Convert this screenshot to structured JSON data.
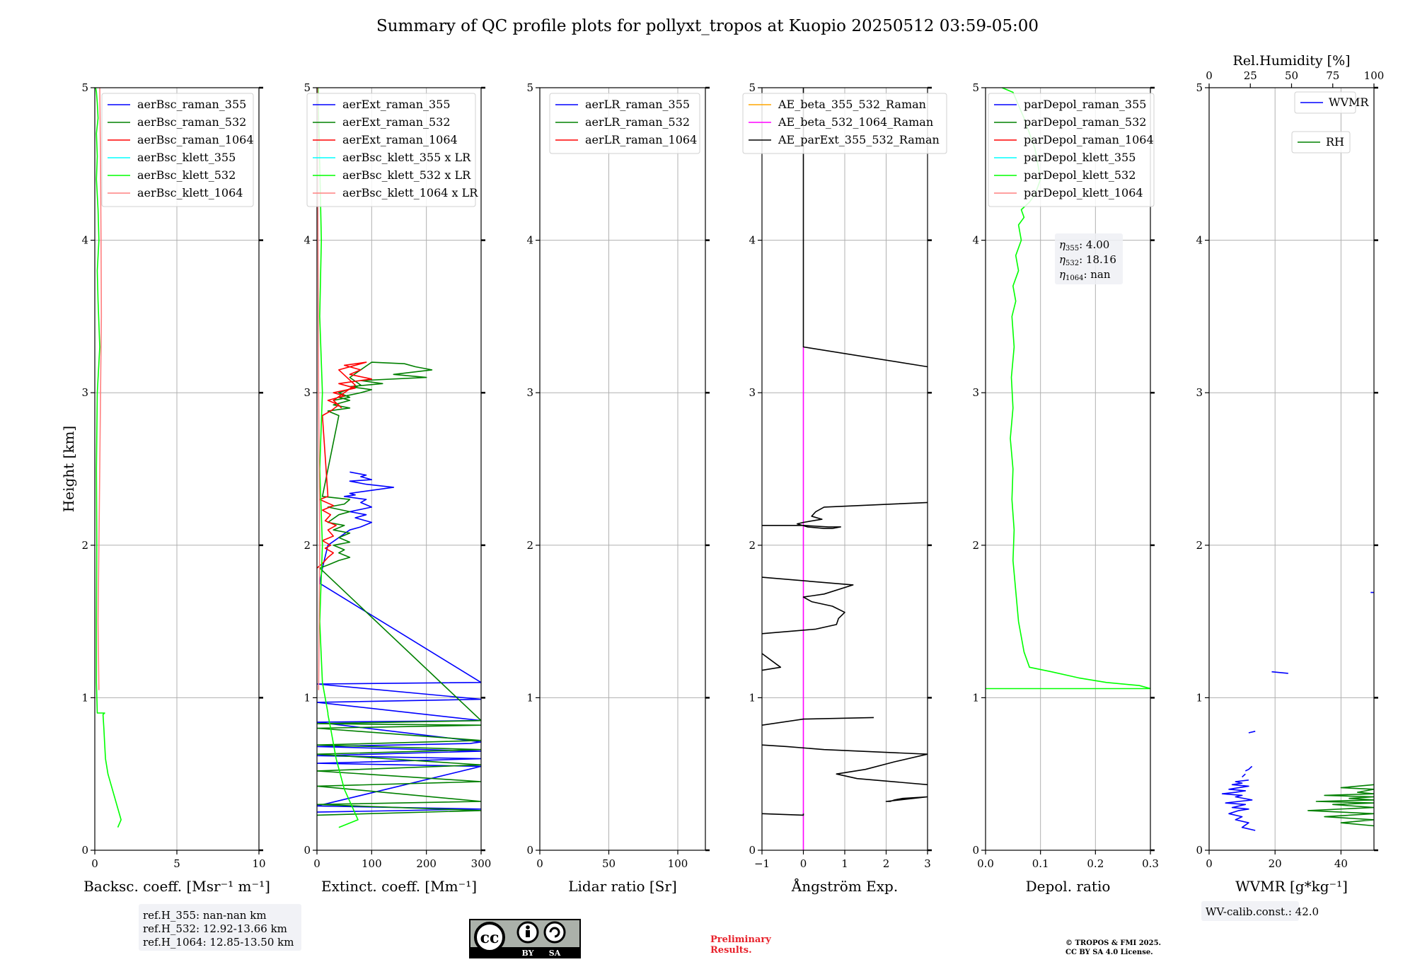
{
  "title": "Summary of QC profile plots for pollyxt_tropos at Kuopio 20250512 03:59-05:00",
  "chart_data": [
    {
      "type": "line",
      "panel": "backscatter",
      "xlabel": "Backsc. coeff. [Msr⁻¹ m⁻¹]",
      "ylabel": "Height [km]",
      "xlim": [
        0,
        10
      ],
      "ylim": [
        0,
        5
      ],
      "xticks": [
        "0",
        "5",
        "10"
      ],
      "yticks": [
        "0",
        "1",
        "2",
        "3",
        "4",
        "5"
      ],
      "grid": true,
      "legend_position": "top-right",
      "series": [
        {
          "name": "aerBsc_raman_355",
          "color": "#0000ff",
          "x": [],
          "y": []
        },
        {
          "name": "aerBsc_raman_532",
          "color": "#008000",
          "x": [],
          "y": []
        },
        {
          "name": "aerBsc_raman_1064",
          "color": "#ff0000",
          "x": [],
          "y": []
        },
        {
          "name": "aerBsc_klett_355",
          "color": "#00ffff",
          "x": [],
          "y": []
        },
        {
          "name": "aerBsc_klett_532",
          "color": "#00ff00",
          "x": [
            1.4,
            1.6,
            0.8,
            0.65,
            0.6,
            0.55,
            0.5,
            0.6,
            0.15,
            0.1,
            0.1,
            0.12,
            0.1,
            0.15,
            0.3,
            0.2,
            0.15,
            0.25,
            0.2,
            0.1,
            0.15,
            0.1,
            0.2,
            0.15,
            0.1,
            0.05
          ],
          "y": [
            0.15,
            0.2,
            0.5,
            0.6,
            0.7,
            0.8,
            0.89,
            0.9,
            0.9,
            1.1,
            1.5,
            2.0,
            2.5,
            3.0,
            3.3,
            3.6,
            3.8,
            4.0,
            4.2,
            4.4,
            4.55,
            4.7,
            4.8,
            4.9,
            4.97,
            5.0
          ]
        },
        {
          "name": "aerBsc_klett_1064",
          "color": "#ff8080",
          "x": [
            0.25,
            0.2,
            0.25,
            0.3,
            0.35,
            0.4,
            0.38,
            0.35,
            0.3
          ],
          "y": [
            1.05,
            1.5,
            2.0,
            2.5,
            3.0,
            3.5,
            4.0,
            4.5,
            5.0
          ]
        }
      ]
    },
    {
      "type": "line",
      "panel": "extinction",
      "xlabel": "Extinct. coeff. [Mm⁻¹]",
      "xlim": [
        0,
        300
      ],
      "ylim": [
        0,
        5
      ],
      "xticks": [
        "0",
        "100",
        "200",
        "300"
      ],
      "yticks": [
        "0",
        "1",
        "2",
        "3",
        "4",
        "5"
      ],
      "grid": true,
      "legend_position": "top-right",
      "series": [
        {
          "name": "aerExt_raman_355",
          "color": "#0000ff",
          "x": [
            0,
            300,
            0,
            300,
            0,
            300,
            0,
            300,
            0,
            280,
            300,
            0,
            300,
            0,
            300,
            0,
            300,
            5,
            10,
            20,
            40,
            60,
            80,
            100,
            70,
            90,
            60,
            100,
            80,
            90,
            50,
            70,
            60,
            100,
            140,
            90,
            60,
            100,
            80,
            90,
            60
          ],
          "y": [
            0.25,
            0.27,
            0.29,
            0.55,
            0.57,
            0.6,
            0.62,
            0.65,
            0.68,
            0.7,
            0.71,
            0.84,
            0.85,
            0.97,
            0.99,
            1.09,
            1.1,
            1.75,
            1.85,
            2.0,
            2.05,
            2.1,
            2.12,
            2.15,
            2.18,
            2.2,
            2.22,
            2.25,
            2.28,
            2.3,
            2.32,
            2.33,
            2.34,
            2.36,
            2.38,
            2.4,
            2.42,
            2.43,
            2.45,
            2.46,
            2.48
          ]
        },
        {
          "name": "aerExt_raman_532",
          "color": "#008000",
          "x": [
            0,
            300,
            0,
            300,
            0,
            300,
            0,
            300,
            0,
            300,
            0,
            300,
            0,
            300,
            0,
            300,
            5,
            20,
            40,
            60,
            40,
            50,
            30,
            60,
            40,
            60,
            30,
            50,
            20,
            40,
            60,
            20,
            50,
            60,
            10,
            40,
            20,
            60,
            30,
            60,
            40,
            80,
            100,
            60,
            120,
            80,
            200,
            140,
            210,
            180,
            160,
            100,
            60,
            80,
            40,
            60,
            30
          ],
          "y": [
            0.23,
            0.26,
            0.3,
            0.32,
            0.42,
            0.45,
            0.52,
            0.56,
            0.63,
            0.66,
            0.69,
            0.72,
            0.8,
            0.82,
            0.83,
            0.85,
            1.85,
            1.87,
            1.9,
            1.92,
            1.95,
            1.97,
            2.0,
            2.02,
            2.05,
            2.08,
            2.1,
            2.13,
            2.15,
            2.2,
            2.22,
            2.25,
            2.27,
            2.3,
            2.32,
            2.85,
            2.88,
            2.9,
            2.92,
            2.95,
            2.97,
            3.0,
            3.02,
            3.04,
            3.06,
            3.08,
            3.1,
            3.12,
            3.15,
            3.17,
            3.19,
            3.2,
            3.1,
            3.05,
            3.0,
            2.97,
            2.95
          ]
        },
        {
          "name": "aerExt_raman_1064",
          "color": "#ff0000",
          "x": [
            0,
            10,
            20,
            30,
            15,
            25,
            10,
            30,
            20,
            35,
            15,
            25,
            10,
            30,
            5,
            20,
            10,
            25,
            40,
            20,
            50,
            30,
            70,
            40,
            100,
            60,
            80,
            50,
            90,
            40,
            70,
            30,
            45
          ],
          "y": [
            1.85,
            1.88,
            1.92,
            1.95,
            1.98,
            2.0,
            2.03,
            2.06,
            2.1,
            2.13,
            2.16,
            2.2,
            2.23,
            2.26,
            2.3,
            2.32,
            2.85,
            2.88,
            2.92,
            2.95,
            2.98,
            3.0,
            3.03,
            3.06,
            3.09,
            3.12,
            3.15,
            3.18,
            3.2,
            3.15,
            3.05,
            2.95,
            2.9
          ]
        },
        {
          "name": "aerBsc_klett_355 x LR",
          "color": "#00ffff",
          "x": [],
          "y": []
        },
        {
          "name": "aerBsc_klett_532 x LR",
          "color": "#00ff00",
          "x": [
            40,
            75,
            50,
            35,
            25,
            20,
            20,
            10,
            5,
            10,
            5,
            10,
            5,
            8,
            5,
            3,
            2
          ],
          "y": [
            0.15,
            0.2,
            0.4,
            0.6,
            0.8,
            0.89,
            0.9,
            1.1,
            1.5,
            2.0,
            2.5,
            3.0,
            3.5,
            4.0,
            4.5,
            4.8,
            5.0
          ]
        },
        {
          "name": "aerBsc_klett_1064 x LR",
          "color": "#ff8080",
          "x": [
            3,
            4,
            5,
            4,
            3,
            2,
            1
          ],
          "y": [
            1.05,
            1.5,
            2.0,
            2.5,
            3.0,
            4.0,
            5.0
          ]
        }
      ]
    },
    {
      "type": "line",
      "panel": "lidar-ratio",
      "xlabel": "Lidar ratio [Sr]",
      "xlim": [
        0,
        120
      ],
      "ylim": [
        0,
        5
      ],
      "xticks": [
        "0",
        "50",
        "100"
      ],
      "yticks": [
        "0",
        "1",
        "2",
        "3",
        "4",
        "5"
      ],
      "grid": true,
      "legend_position": "top-right",
      "series": [
        {
          "name": "aerLR_raman_355",
          "color": "#0000ff",
          "x": [],
          "y": []
        },
        {
          "name": "aerLR_raman_532",
          "color": "#008000",
          "x": [],
          "y": []
        },
        {
          "name": "aerLR_raman_1064",
          "color": "#ff0000",
          "x": [],
          "y": []
        }
      ]
    },
    {
      "type": "line",
      "panel": "angstrom",
      "xlabel": "Ångström Exp.",
      "xlim": [
        -1,
        3
      ],
      "ylim": [
        0,
        5
      ],
      "xticks": [
        "−1",
        "0",
        "1",
        "2",
        "3"
      ],
      "yticks": [
        "0",
        "1",
        "2",
        "3",
        "4",
        "5"
      ],
      "grid": true,
      "legend_position": "top",
      "series": [
        {
          "name": "AE_beta_355_532_Raman",
          "color": "#ffa500",
          "x": [],
          "y": []
        },
        {
          "name": "AE_beta_532_1064_Raman",
          "color": "#ff00ff",
          "x": [
            0,
            0
          ],
          "y": [
            0.0,
            3.3
          ]
        },
        {
          "name": "AE_parExt_355_532_Raman",
          "color": "#000000",
          "x": [
            -1,
            0,
            0,
            null,
            3,
            2.0,
            2.1,
            2.2,
            2.4,
            3,
            null,
            3,
            1.3,
            0.8,
            1.5,
            2.2,
            3,
            null,
            3,
            0.5,
            -0.4,
            -1,
            null,
            1.7,
            0.0,
            -1,
            null,
            -1,
            -0.55,
            -1,
            null,
            -1,
            0.3,
            0.8,
            0.85,
            1.0,
            0.7,
            0.2,
            0,
            0.5,
            1.2,
            -1,
            null,
            3,
            0.5,
            0.3,
            0.2,
            0.45,
            0.0,
            -0.15,
            0.1,
            0.5,
            0.5,
            0.7,
            0.9,
            0.6,
            0.0,
            -1,
            null,
            3,
            0.0,
            0,
            0
          ],
          "y": [
            0.24,
            0.23,
            0.24,
            null,
            0.35,
            0.32,
            0.32,
            0.33,
            0.34,
            0.35,
            null,
            0.43,
            0.47,
            0.5,
            0.53,
            0.58,
            0.63,
            null,
            0.63,
            0.66,
            0.68,
            0.69,
            null,
            0.87,
            0.86,
            0.82,
            null,
            1.18,
            1.2,
            1.29,
            null,
            1.42,
            1.45,
            1.48,
            1.52,
            1.56,
            1.6,
            1.63,
            1.66,
            1.68,
            1.74,
            1.79,
            null,
            2.28,
            2.25,
            2.22,
            2.19,
            2.17,
            2.15,
            2.14,
            2.12,
            2.11,
            2.11,
            2.11,
            2.12,
            2.12,
            2.13,
            2.13,
            null,
            3.17,
            3.3,
            3.3,
            5.0
          ]
        }
      ]
    },
    {
      "type": "line",
      "panel": "depolarization",
      "xlabel": "Depol. ratio",
      "xlim": [
        0.0,
        0.3
      ],
      "ylim": [
        0,
        5
      ],
      "xticks": [
        "0.0",
        "0.1",
        "0.2",
        "0.3"
      ],
      "yticks": [
        "0",
        "1",
        "2",
        "3",
        "4",
        "5"
      ],
      "grid": true,
      "legend_position": "top-left",
      "series": [
        {
          "name": "parDepol_raman_355",
          "color": "#0000ff",
          "x": [],
          "y": []
        },
        {
          "name": "parDepol_raman_532",
          "color": "#008000",
          "x": [],
          "y": []
        },
        {
          "name": "parDepol_raman_1064",
          "color": "#ff0000",
          "x": [],
          "y": []
        },
        {
          "name": "parDepol_klett_355",
          "color": "#00ffff",
          "x": [],
          "y": []
        },
        {
          "name": "parDepol_klett_532",
          "color": "#00ff00",
          "x": [
            0.0,
            0.3,
            0.28,
            0.22,
            0.17,
            0.12,
            0.08,
            0.07,
            0.06,
            0.055,
            0.05,
            0.052,
            0.048,
            0.05,
            0.045,
            0.05,
            0.047,
            0.052,
            0.048,
            0.055,
            0.05,
            0.06,
            0.055,
            0.065,
            0.06,
            0.07,
            0.065,
            0.08,
            0.09,
            0.1,
            0.09,
            0.07,
            0.05,
            0.03
          ],
          "y": [
            1.06,
            1.06,
            1.08,
            1.1,
            1.13,
            1.17,
            1.2,
            1.3,
            1.5,
            1.7,
            1.9,
            2.1,
            2.3,
            2.5,
            2.7,
            2.9,
            3.1,
            3.3,
            3.5,
            3.6,
            3.7,
            3.8,
            3.9,
            4.0,
            4.1,
            4.15,
            4.2,
            4.25,
            4.3,
            4.4,
            4.6,
            4.8,
            4.97,
            5.0
          ]
        },
        {
          "name": "parDepol_klett_1064",
          "color": "#ff8080",
          "x": [],
          "y": []
        }
      ]
    },
    {
      "type": "line",
      "panel": "water-vapor",
      "xlabel": "WVMR [g*kg⁻¹]",
      "x2label": "Rel.Humidity [%]",
      "xlim": [
        0,
        50
      ],
      "x2lim": [
        0,
        100
      ],
      "ylim": [
        0,
        5
      ],
      "xticks": [
        "0",
        "20",
        "40"
      ],
      "x2ticks": [
        "0",
        "25",
        "50",
        "75",
        "100"
      ],
      "yticks": [
        "0",
        "1",
        "2",
        "3",
        "4",
        "5"
      ],
      "grid": true,
      "legend_position": "top-right",
      "series": [
        {
          "name": "WVMR",
          "color": "#0000ff",
          "axis": "bottom",
          "x": [
            14,
            10,
            12,
            8,
            10,
            6,
            9,
            12,
            7,
            11,
            5,
            9,
            13,
            8,
            10,
            4,
            8,
            11,
            6,
            9,
            12,
            7,
            10,
            8,
            12,
            null,
            10,
            11,
            null,
            11,
            12,
            13,
            null,
            12,
            14,
            null,
            19,
            24,
            null,
            49,
            50
          ],
          "y": [
            0.13,
            0.15,
            0.18,
            0.2,
            0.22,
            0.24,
            0.26,
            0.27,
            0.28,
            0.3,
            0.31,
            0.32,
            0.33,
            0.35,
            0.36,
            0.37,
            0.38,
            0.39,
            0.4,
            0.41,
            0.42,
            0.43,
            0.44,
            0.45,
            0.46,
            null,
            0.48,
            0.5,
            null,
            0.52,
            0.53,
            0.55,
            null,
            0.77,
            0.78,
            null,
            1.17,
            1.16,
            null,
            1.69,
            1.69
          ]
        },
        {
          "name": "RH",
          "color": "#008000",
          "axis": "top",
          "x": [
            100,
            80,
            100,
            70,
            100,
            60,
            100,
            75,
            100,
            65,
            100,
            85,
            100,
            70,
            100,
            90,
            100,
            80,
            100
          ],
          "y": [
            0.16,
            0.18,
            0.2,
            0.22,
            0.24,
            0.26,
            0.28,
            0.3,
            0.31,
            0.32,
            0.33,
            0.34,
            0.35,
            0.36,
            0.37,
            0.38,
            0.4,
            0.41,
            0.43
          ]
        }
      ]
    }
  ],
  "annotations": {
    "ext_overlay": [
      "",
      "",
      ""
    ],
    "eta": [
      {
        "sym": "η",
        "sub": "355",
        "value": ": 4.00"
      },
      {
        "sym": "η",
        "sub": "532",
        "value": ": 18.16"
      },
      {
        "sym": "η",
        "sub": "1064",
        "value": ": nan"
      }
    ],
    "ref_heights": [
      "ref.H_355: nan-nan km",
      "ref.H_532: 12.92-13.66 km",
      "ref.H_1064: 12.85-13.50 km"
    ],
    "wv_calib": "WV-calib.const.: 42.0",
    "preliminary": [
      "Preliminary",
      "Results."
    ],
    "copyright": [
      "© TROPOS & FMI 2025.",
      "CC BY SA 4.0 License."
    ],
    "license_badge": {
      "cc": "cc",
      "by": "BY",
      "sa": "SA"
    }
  }
}
